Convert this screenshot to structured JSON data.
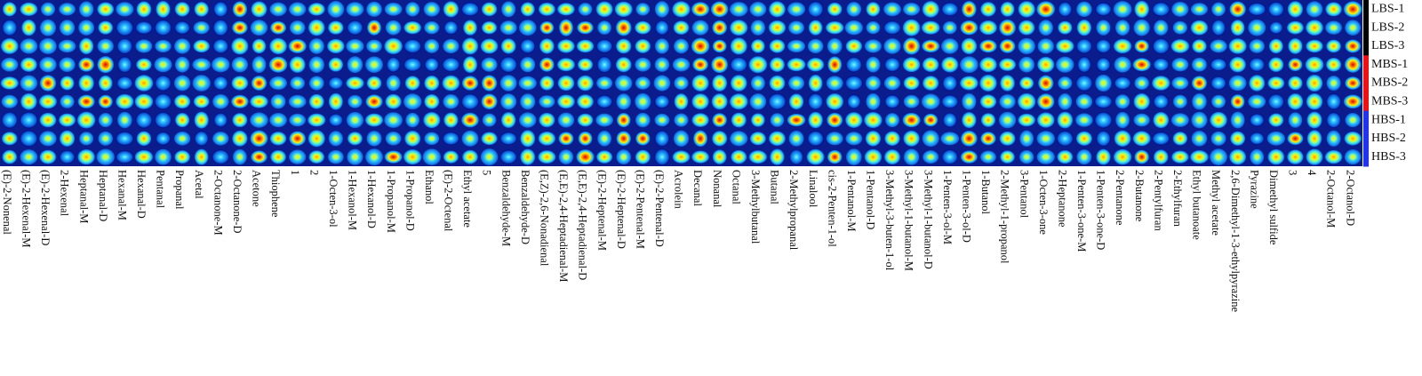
{
  "chart_data": {
    "type": "heatmap",
    "title": "",
    "xlabel": "",
    "ylabel": "",
    "samples": [
      {
        "label": "LBS-1",
        "group": "LBS",
        "color": "#000000"
      },
      {
        "label": "LBS-2",
        "group": "LBS",
        "color": "#000000"
      },
      {
        "label": "LBS-3",
        "group": "LBS",
        "color": "#000000"
      },
      {
        "label": "MBS-1",
        "group": "MBS",
        "color": "#ee1111"
      },
      {
        "label": "MBS-2",
        "group": "MBS",
        "color": "#ee1111"
      },
      {
        "label": "MBS-3",
        "group": "MBS",
        "color": "#ee1111"
      },
      {
        "label": "HBS-1",
        "group": "HBS",
        "color": "#2233ee"
      },
      {
        "label": "HBS-2",
        "group": "HBS",
        "color": "#2233ee"
      },
      {
        "label": "HBS-3",
        "group": "HBS",
        "color": "#2233ee"
      }
    ],
    "compounds": [
      "(E)-2-Nonenal",
      "(E)-2-Hexenal-M",
      "(E)-2-Hexenal-D",
      "2-Hexenal",
      "Heptanal-M",
      "Heptanal-D",
      "Hexanal-M",
      "Hexanal-D",
      "Pentanal",
      "Propanal",
      "Acetal",
      "2-Octanone-M",
      "2-Octanone-D",
      "Acetone",
      "Thiophene",
      "1",
      "2",
      "1-Octen-3-ol",
      "1-Hexanol-M",
      "1-Hexanol-D",
      "1-Propanol-M",
      "1-Propanol-D",
      "Ethanol",
      "(E)-2-Octenal",
      "Ethyl acetate",
      "5",
      "Benzaldehyde-M",
      "Benzaldehyde-D",
      "(E,Z)-2,6-Nonadienal",
      "(E,E)-2,4-Heptadienal-M",
      "(E,E)-2,4-Heptadienal-D",
      "(E)-2-Heptenal-M",
      "(E)-2-Heptenal-D",
      "(E)-2-Pentenal-M",
      "(E)-2-Pentenal-D",
      "Acrolein",
      "Decanal",
      "Nonanal",
      "Octanal",
      "3-Methylbutanal",
      "Butanal",
      "2-Methylpropanal",
      "Linalool",
      "cis-2-Penten-1-ol",
      "1-Pentanol-M",
      "1-Pentanol-D",
      "3-Methyl-3-buten-1-ol",
      "3-Methyl-1-butanol-M",
      "3-Methyl-1-butanol-D",
      "1-Penten-3-ol-M",
      "1-Penten-3-ol-D",
      "1-Butanol",
      "2-Methyl-1-propanol",
      "3-Pentanol",
      "1-Octen-3-one",
      "2-Heptanone",
      "1-Penten-3-one-M",
      "1-Penten-3-one-D",
      "2-Pentanone",
      "2-Butanone",
      "2-Pentylfuran",
      "2-Ethylfuran",
      "Ethyl butanoate",
      "Methyl acetate",
      "2,6-Dimethyl-1-3-ethylpyrazine",
      "Pyrazine",
      "Dimethyl sulfide",
      "3",
      "4",
      "2-Octanol-M",
      "2-Octanol-D"
    ]
  },
  "palette": {
    "background": "#0b1d8c",
    "low": "#00007f",
    "mid_low": "#0a5bd6",
    "mid": "#29c3ff",
    "mid_high": "#fff200",
    "high": "#d40000",
    "group_lbs": "#000000",
    "group_mbs": "#ee1111",
    "group_hbs": "#2233ee"
  }
}
